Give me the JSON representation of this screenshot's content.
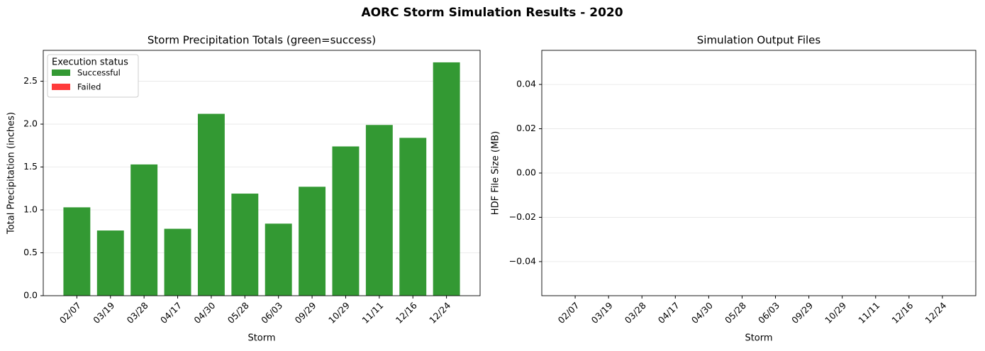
{
  "title": "AORC Storm Simulation Results - 2020",
  "chart_data": [
    {
      "type": "bar",
      "title": "Storm Precipitation Totals (green=success)",
      "xlabel": "Storm",
      "ylabel": "Total Precipitation (inches)",
      "categories": [
        "02/07",
        "03/19",
        "03/28",
        "04/17",
        "04/30",
        "05/28",
        "06/03",
        "09/29",
        "10/29",
        "11/11",
        "12/16",
        "12/24"
      ],
      "series": [
        {
          "name": "Successful",
          "color": "#339933",
          "values": [
            1.03,
            0.76,
            1.53,
            0.78,
            2.12,
            1.19,
            0.84,
            1.27,
            1.74,
            1.99,
            1.84,
            2.72
          ]
        },
        {
          "name": "Failed",
          "color": "#ff3b3b",
          "values": [
            null,
            null,
            null,
            null,
            null,
            null,
            null,
            null,
            null,
            null,
            null,
            null
          ]
        }
      ],
      "legend_title": "Execution status",
      "legend": "upper left",
      "ylim": [
        0,
        2.86
      ],
      "yticks": [
        {
          "value": 0,
          "label": "0.0"
        },
        {
          "value": 0.5,
          "label": "0.5"
        },
        {
          "value": 1,
          "label": "1.0"
        },
        {
          "value": 1.5,
          "label": "1.5"
        },
        {
          "value": 2,
          "label": "2.0"
        },
        {
          "value": 2.5,
          "label": "2.5"
        }
      ],
      "grid": true
    },
    {
      "type": "bar",
      "title": "Simulation Output Files",
      "xlabel": "Storm",
      "ylabel": "HDF File Size (MB)",
      "categories": [
        "02/07",
        "03/19",
        "03/28",
        "04/17",
        "04/30",
        "05/28",
        "06/03",
        "09/29",
        "10/29",
        "11/11",
        "12/16",
        "12/24"
      ],
      "ylim": [
        -0.0554,
        0.0554
      ],
      "yticks": [
        {
          "value": -0.04,
          "label": "−0.04"
        },
        {
          "value": -0.02,
          "label": "−0.02"
        },
        {
          "value": 0,
          "label": "0.00"
        },
        {
          "value": 0.02,
          "label": "0.02"
        },
        {
          "value": 0.04,
          "label": "0.04"
        }
      ],
      "grid": true
    }
  ]
}
